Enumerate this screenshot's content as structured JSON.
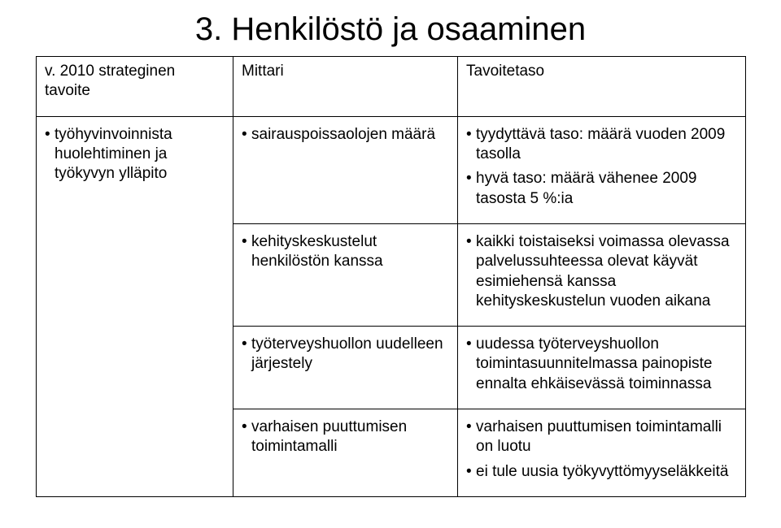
{
  "title": "3. Henkilöstö ja osaaminen",
  "header": {
    "col1_lines": [
      "v. 2010 strateginen",
      "tavoite"
    ],
    "col2": "Mittari",
    "col3": "Tavoitetaso"
  },
  "rows": [
    {
      "c1": "• työhyvinvoinnista huolehtiminen ja työkyvyn ylläpito",
      "c2": "• sairauspoissaolojen määrä",
      "c3": [
        "• tyydyttävä taso: määrä vuoden 2009 tasolla",
        "• hyvä taso: määrä vähenee 2009 tasosta 5 %:ia"
      ]
    },
    {
      "c1": "",
      "c2": "• kehityskeskustelut henkilöstön kanssa",
      "c3": [
        "• kaikki toistaiseksi voimassa olevassa palvelussuhteessa olevat käyvät esimiehensä kanssa kehityskeskustelun vuoden aikana"
      ]
    },
    {
      "c1": "",
      "c2": "• työterveyshuollon uudelleen järjestely",
      "c3": [
        "• uudessa työterveyshuollon toimintasuunnitelmassa painopiste ennalta ehkäisevässä toiminnassa"
      ]
    },
    {
      "c1": "",
      "c2": "• varhaisen puuttumisen toimintamalli",
      "c3": [
        "• varhaisen puuttumisen toimintamalli on luotu",
        "• ei tule uusia työkyvyttömyyseläkkeitä"
      ]
    }
  ],
  "colors": {
    "bg": "#ffffff",
    "text": "#000000",
    "border": "#000000"
  }
}
